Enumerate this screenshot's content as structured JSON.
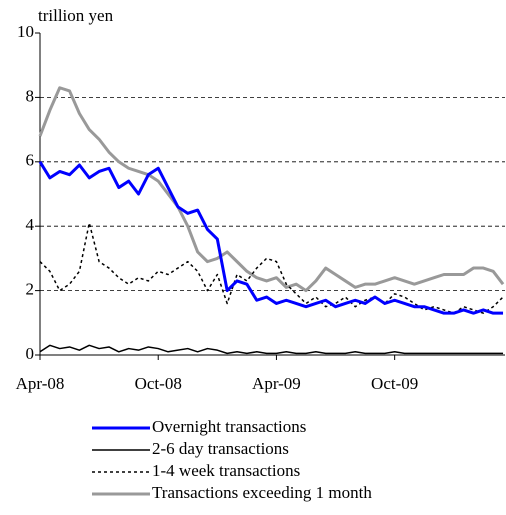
{
  "chart_data": {
    "type": "line",
    "y_label": "trillion yen",
    "x": [
      0,
      0.5,
      1,
      1.5,
      2,
      2.5,
      3,
      3.5,
      4,
      4.5,
      5,
      5.5,
      6,
      6.5,
      7,
      7.5,
      8,
      8.5,
      9,
      9.5,
      10,
      10.5,
      11,
      11.5,
      12,
      12.5,
      13,
      13.5,
      14,
      14.5,
      15,
      15.5,
      16,
      16.5,
      17,
      17.5,
      18,
      18.5,
      19,
      19.5,
      20,
      20.5,
      21,
      21.5,
      22,
      22.5,
      23,
      23.5
    ],
    "xlim": [
      0,
      23.6
    ],
    "xticks": [
      {
        "value": 0,
        "label": "Apr-08"
      },
      {
        "value": 6,
        "label": "Oct-08"
      },
      {
        "value": 12,
        "label": "Apr-09"
      },
      {
        "value": 18,
        "label": "Oct-09"
      }
    ],
    "ylim": [
      0,
      10
    ],
    "yticks": [
      0,
      2,
      4,
      6,
      8,
      10
    ],
    "grid": true,
    "series": [
      {
        "name": "Overnight transactions",
        "color": "#0000ff",
        "style": "solid",
        "width": 3,
        "values": [
          6.0,
          5.5,
          5.7,
          5.6,
          5.9,
          5.5,
          5.7,
          5.8,
          5.2,
          5.4,
          5.0,
          5.6,
          5.8,
          5.2,
          4.6,
          4.4,
          4.5,
          3.9,
          3.6,
          2.0,
          2.3,
          2.2,
          1.7,
          1.8,
          1.6,
          1.7,
          1.6,
          1.5,
          1.6,
          1.7,
          1.5,
          1.6,
          1.7,
          1.6,
          1.8,
          1.6,
          1.7,
          1.6,
          1.5,
          1.5,
          1.4,
          1.3,
          1.3,
          1.4,
          1.3,
          1.4,
          1.3,
          1.3
        ]
      },
      {
        "name": "2-6 day transactions",
        "color": "#000000",
        "style": "solid",
        "width": 1.5,
        "values": [
          0.1,
          0.3,
          0.2,
          0.25,
          0.15,
          0.3,
          0.2,
          0.25,
          0.1,
          0.2,
          0.15,
          0.25,
          0.2,
          0.1,
          0.15,
          0.2,
          0.1,
          0.2,
          0.15,
          0.05,
          0.1,
          0.05,
          0.1,
          0.05,
          0.05,
          0.1,
          0.05,
          0.05,
          0.1,
          0.05,
          0.05,
          0.05,
          0.1,
          0.05,
          0.05,
          0.05,
          0.1,
          0.05,
          0.05,
          0.05,
          0.05,
          0.05,
          0.05,
          0.05,
          0.05,
          0.05,
          0.05,
          0.05
        ]
      },
      {
        "name": "1-4 week transactions",
        "color": "#000000",
        "style": "dotted",
        "width": 1.5,
        "values": [
          2.9,
          2.6,
          2.0,
          2.2,
          2.6,
          4.1,
          2.9,
          2.7,
          2.4,
          2.2,
          2.4,
          2.3,
          2.6,
          2.5,
          2.7,
          2.9,
          2.6,
          2.0,
          2.5,
          1.6,
          2.5,
          2.3,
          2.7,
          3.0,
          2.9,
          2.2,
          1.9,
          1.6,
          1.8,
          1.5,
          1.6,
          1.8,
          1.5,
          1.7,
          1.8,
          1.6,
          1.9,
          1.8,
          1.6,
          1.4,
          1.5,
          1.4,
          1.3,
          1.5,
          1.4,
          1.3,
          1.5,
          1.8
        ]
      },
      {
        "name": "Transactions exceeding 1 month",
        "color": "#999999",
        "style": "solid",
        "width": 3,
        "values": [
          6.8,
          7.6,
          8.3,
          8.2,
          7.5,
          7.0,
          6.7,
          6.3,
          6.0,
          5.8,
          5.7,
          5.6,
          5.4,
          5.0,
          4.6,
          4.0,
          3.2,
          2.9,
          3.0,
          3.2,
          2.9,
          2.6,
          2.4,
          2.3,
          2.4,
          2.1,
          2.2,
          2.0,
          2.3,
          2.7,
          2.5,
          2.3,
          2.1,
          2.2,
          2.2,
          2.3,
          2.4,
          2.3,
          2.2,
          2.3,
          2.4,
          2.5,
          2.5,
          2.5,
          2.7,
          2.7,
          2.6,
          2.2
        ]
      }
    ]
  }
}
